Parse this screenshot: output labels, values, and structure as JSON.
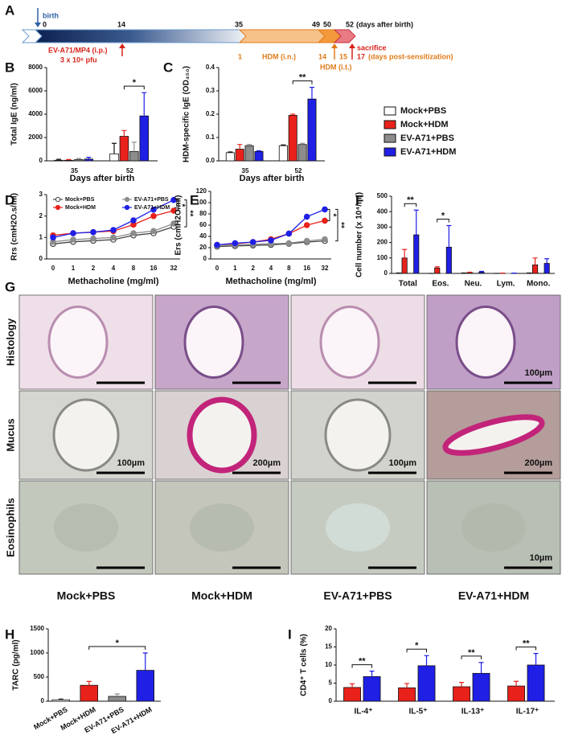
{
  "timeline": {
    "panel_label": "A",
    "birth": "birth",
    "days": [
      "0",
      "14",
      "35",
      "49",
      "50",
      "52"
    ],
    "days_unit": "(days after birth)",
    "infection": "EV-A71/MP4 (i.p.)",
    "dose": "3 x 10⁶ pfu",
    "sensitization_days": [
      "1",
      "14",
      "15",
      "17"
    ],
    "sensitization_unit": "(days post-sensitization)",
    "hdm_in": "HDM (i.n.)",
    "hdm_it": "HDM (i.t.)",
    "sacrifice": "sacrifice"
  },
  "chart_data": [
    {
      "type": "bar",
      "panel_label": "B",
      "ylabel": "Total IgE (ng/ml)",
      "xlabel": "Days after birth",
      "categories": [
        "35",
        "52"
      ],
      "ylim": [
        0,
        8000
      ],
      "yticks": [
        0,
        2000,
        4000,
        6000,
        8000
      ],
      "series": [
        {
          "color": "#ffffff",
          "values": [
            50,
            600
          ],
          "errors": [
            80,
            900
          ]
        },
        {
          "color": "#e8221b",
          "values": [
            50,
            2100
          ],
          "errors": [
            60,
            500
          ]
        },
        {
          "color": "#8c8c8c",
          "values": [
            100,
            800
          ],
          "errors": [
            100,
            800
          ]
        },
        {
          "color": "#1f1fe6",
          "values": [
            150,
            3850
          ],
          "errors": [
            150,
            2000
          ]
        }
      ],
      "annotations": [
        "*"
      ]
    },
    {
      "type": "bar",
      "panel_label": "C",
      "ylabel": "HDM-specific IgE (OD₄₅₀)",
      "xlabel": "Days after birth",
      "categories": [
        "35",
        "52"
      ],
      "ylim": [
        0,
        0.4
      ],
      "yticks": [
        {
          "value": 0,
          "label": "0.0"
        },
        0.1,
        0.2,
        0.3,
        0.4
      ],
      "series": [
        {
          "name": "Mock+PBS",
          "color": "#ffffff",
          "values": [
            0.035,
            0.065
          ],
          "errors": [
            0.003,
            0.003
          ]
        },
        {
          "name": "Mock+HDM",
          "color": "#e8221b",
          "values": [
            0.05,
            0.195
          ],
          "errors": [
            0.02,
            0.005
          ]
        },
        {
          "name": "EV-A71+PBS",
          "color": "#8c8c8c",
          "values": [
            0.065,
            0.07
          ],
          "errors": [
            0.005,
            0.005
          ]
        },
        {
          "name": "EV-A71+HDM",
          "color": "#1f1fe6",
          "values": [
            0.04,
            0.265
          ],
          "errors": [
            0.003,
            0.05
          ]
        }
      ],
      "annotations": [
        "**"
      ]
    },
    {
      "type": "line",
      "panel_label": "D",
      "ylabel": "Rrs (cmH2O.s/ml)",
      "xlabel": "Methacholine (mg/ml)",
      "categories": [
        "0",
        "1",
        "2",
        "4",
        "8",
        "16",
        "32"
      ],
      "ylim": [
        0,
        3
      ],
      "yticks": [
        0,
        1,
        2,
        3
      ],
      "series": [
        {
          "name": "Mock+PBS",
          "color": "#444444",
          "marker": "open-circle",
          "values": [
            0.7,
            0.8,
            0.85,
            0.9,
            1.1,
            1.2,
            1.5
          ]
        },
        {
          "name": "Mock+HDM",
          "color": "#e8221b",
          "marker": "circle",
          "values": [
            1.1,
            1.2,
            1.25,
            1.3,
            1.6,
            2.0,
            2.25
          ]
        },
        {
          "name": "EV-A71+PBS",
          "color": "#8c8c8c",
          "marker": "circle",
          "values": [
            0.8,
            0.9,
            0.95,
            1.0,
            1.2,
            1.3,
            1.65
          ]
        },
        {
          "name": "EV-A71+HDM",
          "color": "#1f1fe6",
          "marker": "circle",
          "values": [
            1.0,
            1.2,
            1.25,
            1.35,
            1.8,
            2.3,
            2.75
          ]
        }
      ],
      "annotations": [
        "*",
        "**"
      ]
    },
    {
      "type": "line",
      "panel_label": "E",
      "ylabel": "Ers (cmH2O/ml)",
      "xlabel": "Methacholine (mg/ml)",
      "categories": [
        "0",
        "1",
        "2",
        "4",
        "8",
        "16",
        "32"
      ],
      "ylim": [
        0,
        120
      ],
      "yticks": [
        0,
        20,
        40,
        60,
        80,
        100,
        120
      ],
      "series": [
        {
          "color": "#444444",
          "marker": "open-circle",
          "values": [
            22,
            23,
            24,
            25,
            27,
            30,
            32
          ]
        },
        {
          "color": "#e8221b",
          "marker": "circle",
          "values": [
            25,
            27,
            30,
            35,
            45,
            60,
            68
          ]
        },
        {
          "color": "#8c8c8c",
          "marker": "circle",
          "values": [
            24,
            25,
            26,
            27,
            28,
            32,
            35
          ]
        },
        {
          "color": "#1f1fe6",
          "marker": "circle",
          "values": [
            25,
            28,
            30,
            33,
            45,
            75,
            88
          ]
        }
      ],
      "annotations": [
        "*",
        "**"
      ]
    },
    {
      "type": "bar",
      "panel_label": "F",
      "ylabel": "Cell number (x 10⁴/ml)",
      "categories": [
        "Total",
        "Eos.",
        "Neu.",
        "Lym.",
        "Mono."
      ],
      "ylim": [
        0,
        500
      ],
      "yticks": [
        0,
        100,
        200,
        300,
        400,
        500
      ],
      "series": [
        {
          "color": "#ffffff",
          "values": [
            2,
            0,
            2,
            0,
            2
          ],
          "errors": [
            1,
            0,
            1,
            0,
            1
          ]
        },
        {
          "color": "#e8221b",
          "values": [
            100,
            35,
            5,
            1,
            55
          ],
          "errors": [
            55,
            8,
            3,
            1,
            45
          ]
        },
        {
          "color": "#8c8c8c",
          "values": [
            2,
            0,
            2,
            0,
            2
          ],
          "errors": [
            1,
            0,
            1,
            0,
            1
          ]
        },
        {
          "color": "#1f1fe6",
          "values": [
            250,
            170,
            8,
            1,
            65
          ],
          "errors": [
            160,
            140,
            5,
            1,
            30
          ]
        }
      ],
      "annotations": [
        "**",
        "*"
      ]
    },
    {
      "type": "bar",
      "panel_label": "H",
      "ylabel": "TARC (pg/ml)",
      "categories": [
        "Mock+PBS",
        "Mock+HDM",
        "EV-A71+PBS",
        "EV-A71+HDM"
      ],
      "ylim": [
        0,
        1500
      ],
      "yticks": [
        0,
        500,
        1000,
        1500
      ],
      "values": [
        30,
        330,
        100,
        640
      ],
      "errors": [
        15,
        80,
        50,
        360
      ],
      "colors": [
        "#ffffff",
        "#e8221b",
        "#8c8c8c",
        "#1f1fe6"
      ],
      "annotations": [
        "*"
      ]
    },
    {
      "type": "bar",
      "panel_label": "I",
      "ylabel": "CD4⁺ T cells (%)",
      "categories": [
        "IL-4⁺",
        "IL-5⁺",
        "IL-13⁺",
        "IL-17⁺"
      ],
      "ylim": [
        0,
        20
      ],
      "yticks": [
        0,
        5,
        10,
        15,
        20
      ],
      "series": [
        {
          "color": "#e8221b",
          "values": [
            3.8,
            3.7,
            4.0,
            4.2
          ],
          "errors": [
            1.0,
            1.2,
            1.2,
            1.3
          ]
        },
        {
          "color": "#1f1fe6",
          "values": [
            6.8,
            9.8,
            7.7,
            10.0
          ],
          "errors": [
            1.5,
            2.8,
            3.0,
            3.2
          ]
        }
      ],
      "annotations": [
        "**",
        "*",
        "**",
        "**"
      ]
    }
  ],
  "micrographs": {
    "panel_label": "G",
    "columns": [
      "Mock+PBS",
      "Mock+HDM",
      "EV-A71+PBS",
      "EV-A71+HDM"
    ],
    "rows": [
      {
        "label": "Histology",
        "scale_bar_labels": [
          "100µm"
        ]
      },
      {
        "label": "Mucus",
        "scale_bar_labels": [
          "100µm",
          "200µm",
          "100µm",
          "200µm"
        ]
      },
      {
        "label": "Eosinophils",
        "scale_bar_labels": [
          "10µm"
        ]
      }
    ]
  }
}
